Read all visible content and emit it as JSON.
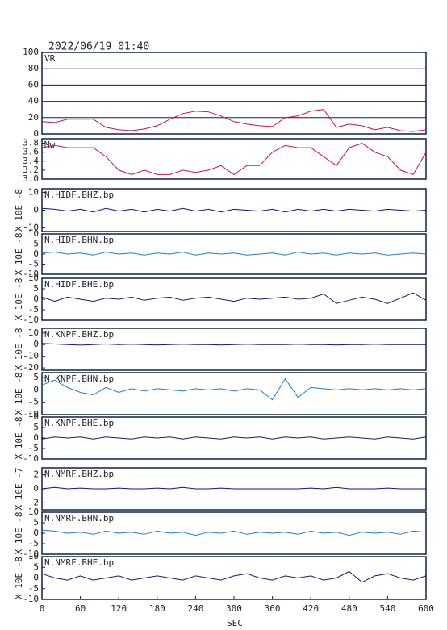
{
  "chart_data": [
    {
      "type": "line",
      "title": "2022/06/19 01:40",
      "label": "VR",
      "color": "#d0104c",
      "grid": true,
      "xlim": [
        0,
        600
      ],
      "ylim": [
        0,
        100
      ],
      "yticks": [
        0,
        20,
        40,
        60,
        80,
        100
      ],
      "x": [
        0,
        20,
        40,
        60,
        80,
        100,
        120,
        140,
        160,
        180,
        200,
        220,
        240,
        260,
        280,
        300,
        320,
        340,
        360,
        380,
        400,
        420,
        440,
        460,
        480,
        500,
        520,
        540,
        560,
        580,
        600
      ],
      "values": [
        15,
        14,
        18,
        18,
        18,
        8,
        5,
        4,
        6,
        10,
        18,
        25,
        28,
        27,
        22,
        15,
        12,
        10,
        9,
        20,
        22,
        28,
        30,
        8,
        12,
        10,
        5,
        8,
        4,
        3,
        5
      ]
    },
    {
      "type": "line",
      "label": "Mw",
      "color": "#d0104c",
      "grid": false,
      "xlim": [
        0,
        600
      ],
      "ylim": [
        3.0,
        3.9
      ],
      "yticks": [
        {
          "value": 3.0,
          "label": "3.0"
        },
        {
          "value": 3.2,
          "label": "3.2"
        },
        {
          "value": 3.4,
          "label": "3.4"
        },
        {
          "value": 3.6,
          "label": "3.6"
        },
        {
          "value": 3.8,
          "label": "3.8"
        }
      ],
      "x": [
        0,
        20,
        40,
        60,
        80,
        100,
        120,
        140,
        160,
        180,
        200,
        220,
        240,
        260,
        280,
        300,
        320,
        340,
        360,
        380,
        400,
        420,
        440,
        460,
        480,
        500,
        520,
        540,
        560,
        580,
        600
      ],
      "values": [
        3.7,
        3.75,
        3.7,
        3.7,
        3.7,
        3.5,
        3.2,
        3.1,
        3.2,
        3.1,
        3.1,
        3.2,
        3.15,
        3.2,
        3.3,
        3.1,
        3.3,
        3.3,
        3.6,
        3.75,
        3.7,
        3.7,
        3.5,
        3.3,
        3.7,
        3.8,
        3.6,
        3.5,
        3.2,
        3.1,
        3.6
      ]
    },
    {
      "type": "line",
      "label": "N.HIDF.BHZ.bp",
      "ylabel": "X 10E -8",
      "color": "#1010a0",
      "grid": false,
      "xlim": [
        0,
        600
      ],
      "ylim": [
        -12,
        12
      ],
      "yticks": [
        -10,
        0,
        10
      ],
      "x": [
        0,
        20,
        40,
        60,
        80,
        100,
        120,
        140,
        160,
        180,
        200,
        220,
        240,
        260,
        280,
        300,
        320,
        340,
        360,
        380,
        400,
        420,
        440,
        460,
        480,
        500,
        520,
        540,
        560,
        580,
        600
      ],
      "values": [
        1,
        0.5,
        -0.5,
        0.5,
        -1,
        1,
        -0.5,
        0.5,
        -1,
        0.5,
        -0.5,
        1,
        -0.5,
        0.5,
        -1,
        0.5,
        0,
        -0.5,
        0.5,
        -1,
        0.5,
        -0.5,
        0.5,
        -0.5,
        0.5,
        0,
        -0.5,
        0.5,
        0,
        -0.5,
        0
      ]
    },
    {
      "type": "line",
      "label": "N.HIDF.BHN.bp",
      "ylabel": "X 10E -8",
      "color": "#1e7fc8",
      "grid": false,
      "xlim": [
        0,
        600
      ],
      "ylim": [
        -10,
        10
      ],
      "yticks": [
        -10,
        -5,
        0,
        5,
        10
      ],
      "x": [
        0,
        20,
        40,
        60,
        80,
        100,
        120,
        140,
        160,
        180,
        200,
        220,
        240,
        260,
        280,
        300,
        320,
        340,
        360,
        380,
        400,
        420,
        440,
        460,
        480,
        500,
        520,
        540,
        560,
        580,
        600
      ],
      "values": [
        0.5,
        1,
        0,
        0.5,
        -0.5,
        1,
        0,
        0.5,
        -0.5,
        0.5,
        0,
        1,
        -0.5,
        0.5,
        0,
        0.5,
        -0.5,
        0,
        0.5,
        -0.5,
        1,
        0,
        0.5,
        -0.5,
        0.5,
        0,
        0.5,
        -0.5,
        0,
        0.5,
        0
      ]
    },
    {
      "type": "line",
      "label": "N.HIDF.BHE.bp",
      "ylabel": "X 10E -8",
      "color": "#1a1a6e",
      "grid": false,
      "xlim": [
        0,
        600
      ],
      "ylim": [
        -10,
        10
      ],
      "yticks": [
        -10,
        -5,
        0,
        5,
        10
      ],
      "x": [
        0,
        20,
        40,
        60,
        80,
        100,
        120,
        140,
        160,
        180,
        200,
        220,
        240,
        260,
        280,
        300,
        320,
        340,
        360,
        380,
        400,
        420,
        440,
        460,
        480,
        500,
        520,
        540,
        560,
        580,
        600
      ],
      "values": [
        1,
        -1,
        1,
        0,
        -1,
        0.5,
        0,
        1,
        -0.5,
        0.5,
        1,
        -0.5,
        0.5,
        1,
        0,
        -1,
        0.5,
        0,
        0.5,
        1,
        0,
        0.5,
        2.5,
        -2,
        -0.5,
        1,
        0,
        -2,
        0.5,
        3,
        -0.5
      ]
    },
    {
      "type": "line",
      "label": "N.KNPF.BHZ.bp",
      "ylabel": "X 10E -8",
      "color": "#1010a0",
      "grid": false,
      "xlim": [
        0,
        600
      ],
      "ylim": [
        -22,
        14
      ],
      "yticks": [
        -20,
        -10,
        0,
        10
      ],
      "x": [
        0,
        20,
        40,
        60,
        80,
        100,
        120,
        140,
        160,
        180,
        200,
        220,
        240,
        260,
        280,
        300,
        320,
        340,
        360,
        380,
        400,
        420,
        440,
        460,
        480,
        500,
        520,
        540,
        560,
        580,
        600
      ],
      "values": [
        1,
        0.5,
        0,
        -0.5,
        0,
        0.5,
        0,
        0.3,
        0,
        -0.3,
        0,
        0.3,
        0,
        0,
        -0.3,
        0,
        0.3,
        0,
        0,
        0,
        0.3,
        0,
        0,
        -0.3,
        0,
        0,
        0.3,
        0,
        0,
        0,
        0
      ]
    },
    {
      "type": "line",
      "label": "N.KNPF.BHN.bp",
      "ylabel": "X 10E -8",
      "color": "#1e7fc8",
      "grid": false,
      "xlim": [
        0,
        600
      ],
      "ylim": [
        -10,
        7
      ],
      "yticks": [
        -10,
        -5,
        0,
        5
      ],
      "x": [
        0,
        20,
        40,
        60,
        80,
        100,
        120,
        140,
        160,
        180,
        200,
        220,
        240,
        260,
        280,
        300,
        320,
        340,
        360,
        380,
        400,
        420,
        440,
        460,
        480,
        500,
        520,
        540,
        560,
        580,
        600
      ],
      "values": [
        2,
        4,
        1,
        -1,
        -2,
        1,
        -1,
        0.5,
        -0.5,
        0.5,
        0,
        -0.5,
        0.5,
        0,
        0.5,
        -0.5,
        0.5,
        0,
        -4,
        4.5,
        -3,
        1,
        0.5,
        0,
        0.5,
        0,
        0.5,
        0,
        0.5,
        0,
        0.5
      ]
    },
    {
      "type": "line",
      "label": "N.KNPF.BHE.bp",
      "ylabel": "X 10E -8",
      "color": "#1a1a6e",
      "grid": false,
      "xlim": [
        0,
        600
      ],
      "ylim": [
        -10,
        10
      ],
      "yticks": [
        -10,
        -5,
        0,
        5,
        10
      ],
      "x": [
        0,
        20,
        40,
        60,
        80,
        100,
        120,
        140,
        160,
        180,
        200,
        220,
        240,
        260,
        280,
        300,
        320,
        340,
        360,
        380,
        400,
        420,
        440,
        460,
        480,
        500,
        520,
        540,
        560,
        580,
        600
      ],
      "values": [
        -0.5,
        0.5,
        0,
        0.5,
        -0.5,
        0.5,
        0,
        -0.5,
        0.5,
        0,
        0.5,
        -0.5,
        0.5,
        0,
        -0.5,
        0.5,
        0,
        0.5,
        -0.5,
        0.5,
        0,
        0.5,
        -0.5,
        0,
        0.5,
        0,
        -0.5,
        0.5,
        0,
        -0.5,
        0.5
      ]
    },
    {
      "type": "line",
      "label": "N.NMRF.BHZ.bp",
      "ylabel": "X 10E -7",
      "color": "#1010a0",
      "grid": false,
      "xlim": [
        0,
        600
      ],
      "ylim": [
        -3,
        3
      ],
      "yticks": [
        -2,
        0,
        2
      ],
      "x": [
        0,
        20,
        40,
        60,
        80,
        100,
        120,
        140,
        160,
        180,
        200,
        220,
        240,
        260,
        280,
        300,
        320,
        340,
        360,
        380,
        400,
        420,
        440,
        460,
        480,
        500,
        520,
        540,
        560,
        580,
        600
      ],
      "values": [
        0,
        0.2,
        0,
        0.1,
        0,
        0,
        0.1,
        0,
        0,
        0.1,
        0,
        0.2,
        0,
        0,
        0.1,
        0,
        0,
        0,
        0,
        0,
        0,
        0.1,
        0,
        0.2,
        0,
        0,
        0,
        0.1,
        0,
        0,
        0
      ]
    },
    {
      "type": "line",
      "label": "N.NMRF.BHN.bp",
      "ylabel": "X 10E -8",
      "color": "#1e7fc8",
      "grid": false,
      "xlim": [
        0,
        600
      ],
      "ylim": [
        -10,
        10
      ],
      "yticks": [
        -10,
        -5,
        0,
        5,
        10
      ],
      "x": [
        0,
        20,
        40,
        60,
        80,
        100,
        120,
        140,
        160,
        180,
        200,
        220,
        240,
        260,
        280,
        300,
        320,
        340,
        360,
        380,
        400,
        420,
        440,
        460,
        480,
        500,
        520,
        540,
        560,
        580,
        600
      ],
      "values": [
        1.5,
        1,
        0,
        0.5,
        -0.5,
        1,
        0,
        0.5,
        -0.5,
        1,
        0,
        0.5,
        -1,
        0.5,
        0,
        1,
        -0.5,
        0.5,
        0,
        0.5,
        -0.5,
        1,
        0,
        0.5,
        -1,
        0.5,
        0,
        0.5,
        -0.5,
        1,
        0.5
      ]
    },
    {
      "type": "line",
      "label": "N.NMRF.BHE.bp",
      "ylabel": "X 10E -8",
      "color": "#1a1a6e",
      "grid": false,
      "xlim": [
        0,
        600
      ],
      "ylim": [
        -10,
        10
      ],
      "yticks": [
        -10,
        -5,
        0,
        5,
        10
      ],
      "xlabel": "SEC",
      "xticks": [
        0,
        60,
        120,
        180,
        240,
        300,
        360,
        420,
        480,
        540,
        600
      ],
      "x": [
        0,
        20,
        40,
        60,
        80,
        100,
        120,
        140,
        160,
        180,
        200,
        220,
        240,
        260,
        280,
        300,
        320,
        340,
        360,
        380,
        400,
        420,
        440,
        460,
        480,
        500,
        520,
        540,
        560,
        580,
        600
      ],
      "values": [
        2,
        0,
        -1,
        1,
        -1,
        0,
        1,
        -1,
        0,
        1,
        0,
        -1,
        1,
        0,
        -1,
        1,
        2,
        0,
        -1,
        1,
        0,
        1,
        -1,
        0,
        3,
        -2,
        1,
        2,
        0,
        -1,
        1
      ]
    }
  ]
}
